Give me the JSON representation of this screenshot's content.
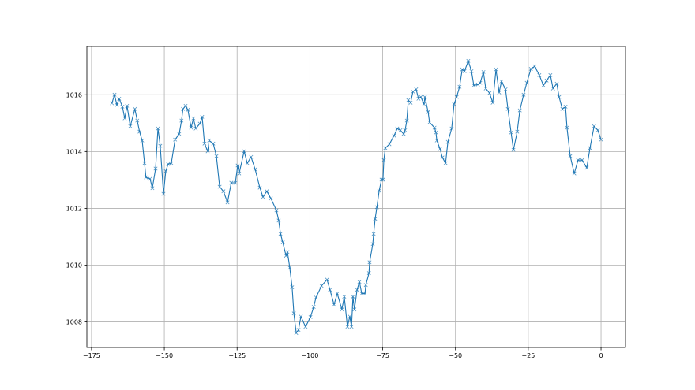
{
  "chart_data": {
    "type": "line",
    "title": "",
    "xlabel": "",
    "ylabel": "",
    "xlim": [
      -176.6,
      8.4
    ],
    "ylim": [
      1007.1,
      1017.7
    ],
    "xticks": [
      -175,
      -150,
      -125,
      -100,
      -75,
      -50,
      -25,
      0
    ],
    "yticks": [
      1008,
      1010,
      1012,
      1014,
      1016
    ],
    "grid": true,
    "marker": "x",
    "color": "#1f77b4",
    "series": [
      {
        "x": [
          -168.0,
          -167.1,
          -166.3,
          -165.5,
          -164.4,
          -163.6,
          -162.8,
          -161.7,
          -160.1,
          -159.3,
          -158.5,
          -157.6,
          -156.8,
          -156.3,
          -154.9,
          -154.1,
          -153.0,
          -152.2,
          -151.4,
          -150.3,
          -149.5,
          -148.7,
          -147.6,
          -146.3,
          -144.9,
          -144.1,
          -143.6,
          -142.7,
          -141.9,
          -140.8,
          -140.0,
          -139.2,
          -137.8,
          -137.0,
          -136.2,
          -135.1,
          -134.6,
          -133.2,
          -132.1,
          -131.0,
          -129.7,
          -128.3,
          -127.0,
          -125.6,
          -124.8,
          -124.3,
          -122.6,
          -121.5,
          -120.2,
          -118.8,
          -117.2,
          -116.1,
          -114.8,
          -113.4,
          -111.5,
          -110.7,
          -110.1,
          -109.3,
          -108.2,
          -107.7,
          -106.9,
          -106.1,
          -105.5,
          -104.7,
          -103.9,
          -103.1,
          -101.5,
          -99.8,
          -98.7,
          -97.9,
          -96.0,
          -94.1,
          -93.1,
          -91.7,
          -90.6,
          -89.0,
          -88.2,
          -87.1,
          -86.3,
          -85.7,
          -85.2,
          -84.7,
          -83.8,
          -83.0,
          -82.2,
          -81.1,
          -80.8,
          -79.7,
          -79.5,
          -78.4,
          -78.1,
          -77.6,
          -77.0,
          -76.2,
          -75.4,
          -74.9,
          -74.6,
          -74.1,
          -72.7,
          -71.1,
          -70.0,
          -68.9,
          -67.8,
          -67.3,
          -66.7,
          -66.2,
          -65.4,
          -64.6,
          -63.5,
          -62.7,
          -61.9,
          -60.8,
          -60.5,
          -59.4,
          -58.9,
          -57.2,
          -56.7,
          -56.4,
          -55.3,
          -54.5,
          -53.4,
          -52.6,
          -51.3,
          -50.5,
          -49.6,
          -48.6,
          -47.7,
          -46.9,
          -45.6,
          -44.5,
          -43.7,
          -42.3,
          -41.5,
          -40.4,
          -39.6,
          -38.3,
          -37.2,
          -36.1,
          -35.0,
          -34.2,
          -32.8,
          -32.0,
          -30.9,
          -30.1,
          -28.8,
          -27.9,
          -26.6,
          -25.5,
          -24.1,
          -22.8,
          -21.2,
          -19.8,
          -18.7,
          -17.4,
          -16.5,
          -15.2,
          -14.4,
          -13.3,
          -12.2,
          -11.7,
          -10.6,
          -9.2,
          -7.9,
          -6.5,
          -4.9,
          -3.8,
          -2.4,
          -1.1,
          0.0
        ],
        "y": [
          1015.7,
          1016.0,
          1015.64,
          1015.86,
          1015.58,
          1015.17,
          1015.61,
          1014.89,
          1015.5,
          1015.09,
          1014.7,
          1014.39,
          1013.59,
          1013.09,
          1013.04,
          1012.71,
          1013.4,
          1014.81,
          1014.2,
          1012.51,
          1013.31,
          1013.56,
          1013.59,
          1014.42,
          1014.62,
          1015.09,
          1015.5,
          1015.61,
          1015.47,
          1014.84,
          1015.17,
          1014.81,
          1014.98,
          1015.22,
          1014.28,
          1014.01,
          1014.39,
          1014.28,
          1013.84,
          1012.76,
          1012.6,
          1012.21,
          1012.9,
          1012.9,
          1013.51,
          1013.23,
          1014.01,
          1013.59,
          1013.81,
          1013.37,
          1012.73,
          1012.4,
          1012.6,
          1012.35,
          1011.93,
          1011.57,
          1011.1,
          1010.8,
          1010.33,
          1010.46,
          1009.91,
          1009.22,
          1008.3,
          1007.61,
          1007.72,
          1008.19,
          1007.83,
          1008.17,
          1008.53,
          1008.86,
          1009.27,
          1009.49,
          1009.13,
          1008.61,
          1009.0,
          1008.44,
          1008.89,
          1007.83,
          1008.19,
          1007.83,
          1008.89,
          1008.44,
          1009.13,
          1009.41,
          1009.0,
          1009.0,
          1009.3,
          1009.72,
          1010.1,
          1010.74,
          1011.1,
          1011.63,
          1012.04,
          1012.62,
          1013.01,
          1013.01,
          1013.7,
          1014.12,
          1014.26,
          1014.56,
          1014.81,
          1014.75,
          1014.62,
          1014.75,
          1015.09,
          1015.81,
          1015.72,
          1016.11,
          1016.19,
          1015.86,
          1015.92,
          1015.67,
          1015.92,
          1015.39,
          1015.03,
          1014.84,
          1014.67,
          1014.39,
          1014.09,
          1013.79,
          1013.59,
          1014.34,
          1014.81,
          1015.67,
          1015.92,
          1016.28,
          1016.89,
          1016.83,
          1017.19,
          1016.83,
          1016.33,
          1016.36,
          1016.42,
          1016.8,
          1016.22,
          1016.06,
          1015.72,
          1016.89,
          1016.08,
          1016.47,
          1016.19,
          1015.5,
          1014.67,
          1014.06,
          1014.7,
          1015.45,
          1016.0,
          1016.42,
          1016.91,
          1017.0,
          1016.69,
          1016.33,
          1016.5,
          1016.69,
          1016.22,
          1016.39,
          1015.92,
          1015.5,
          1015.58,
          1014.84,
          1013.84,
          1013.23,
          1013.7,
          1013.7,
          1013.43,
          1014.12,
          1014.89,
          1014.75,
          1014.42
        ]
      }
    ]
  }
}
